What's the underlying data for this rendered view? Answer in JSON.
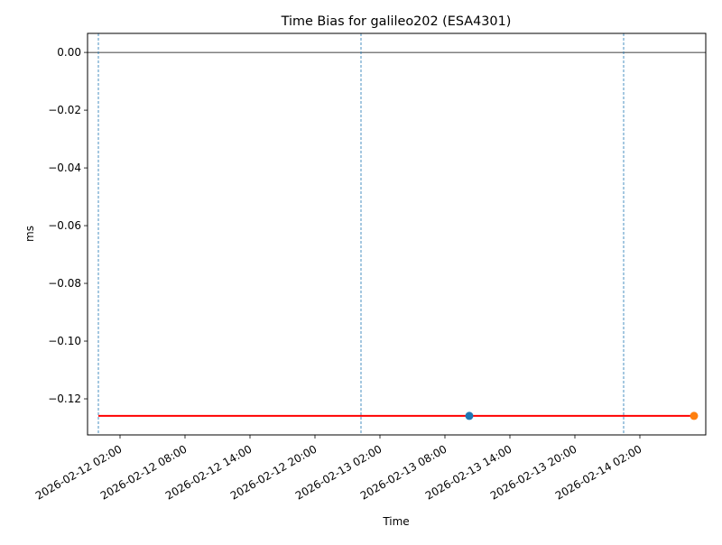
{
  "chart_data": {
    "type": "line",
    "title": "Time Bias for galileo202 (ESA4301)",
    "xlabel": "Time",
    "ylabel": "ms",
    "xlim": [
      "2026-02-11T23:00",
      "2026-02-14T08:05"
    ],
    "ylim": [
      -0.1325,
      0.0066
    ],
    "grid": false,
    "x_ticks": [
      "2026-02-12T02:00",
      "2026-02-12T08:00",
      "2026-02-12T14:00",
      "2026-02-12T20:00",
      "2026-02-13T02:00",
      "2026-02-13T08:00",
      "2026-02-13T14:00",
      "2026-02-13T20:00",
      "2026-02-14T02:00"
    ],
    "x_tick_labels": [
      "2026-02-12 02:00",
      "2026-02-12 08:00",
      "2026-02-12 14:00",
      "2026-02-12 20:00",
      "2026-02-13 02:00",
      "2026-02-13 08:00",
      "2026-02-13 14:00",
      "2026-02-13 20:00",
      "2026-02-14 02:00"
    ],
    "y_ticks": [
      0.0,
      -0.02,
      -0.04,
      -0.06,
      -0.08,
      -0.1,
      -0.12
    ],
    "y_tick_labels": [
      "0.00",
      "−0.02",
      "−0.04",
      "−0.06",
      "−0.08",
      "−0.10",
      "−0.12"
    ],
    "hline": {
      "y": 0.0,
      "color": "#000000"
    },
    "vlines": [
      {
        "x": "2026-02-12T00:00",
        "color": "#1f77b4"
      },
      {
        "x": "2026-02-13T00:15",
        "color": "#1f77b4"
      },
      {
        "x": "2026-02-14T00:30",
        "color": "#1f77b4"
      }
    ],
    "series": [
      {
        "kind": "line",
        "color": "#ff0000",
        "x": [
          "2026-02-12T00:00",
          "2026-02-14T07:00"
        ],
        "y": [
          -0.1259,
          -0.1259
        ]
      },
      {
        "kind": "point",
        "color": "#1f77b4",
        "x": [
          "2026-02-13T10:15"
        ],
        "y": [
          -0.1259
        ]
      },
      {
        "kind": "point",
        "color": "#ff7f0e",
        "x": [
          "2026-02-14T07:00"
        ],
        "y": [
          -0.1259
        ]
      }
    ]
  }
}
